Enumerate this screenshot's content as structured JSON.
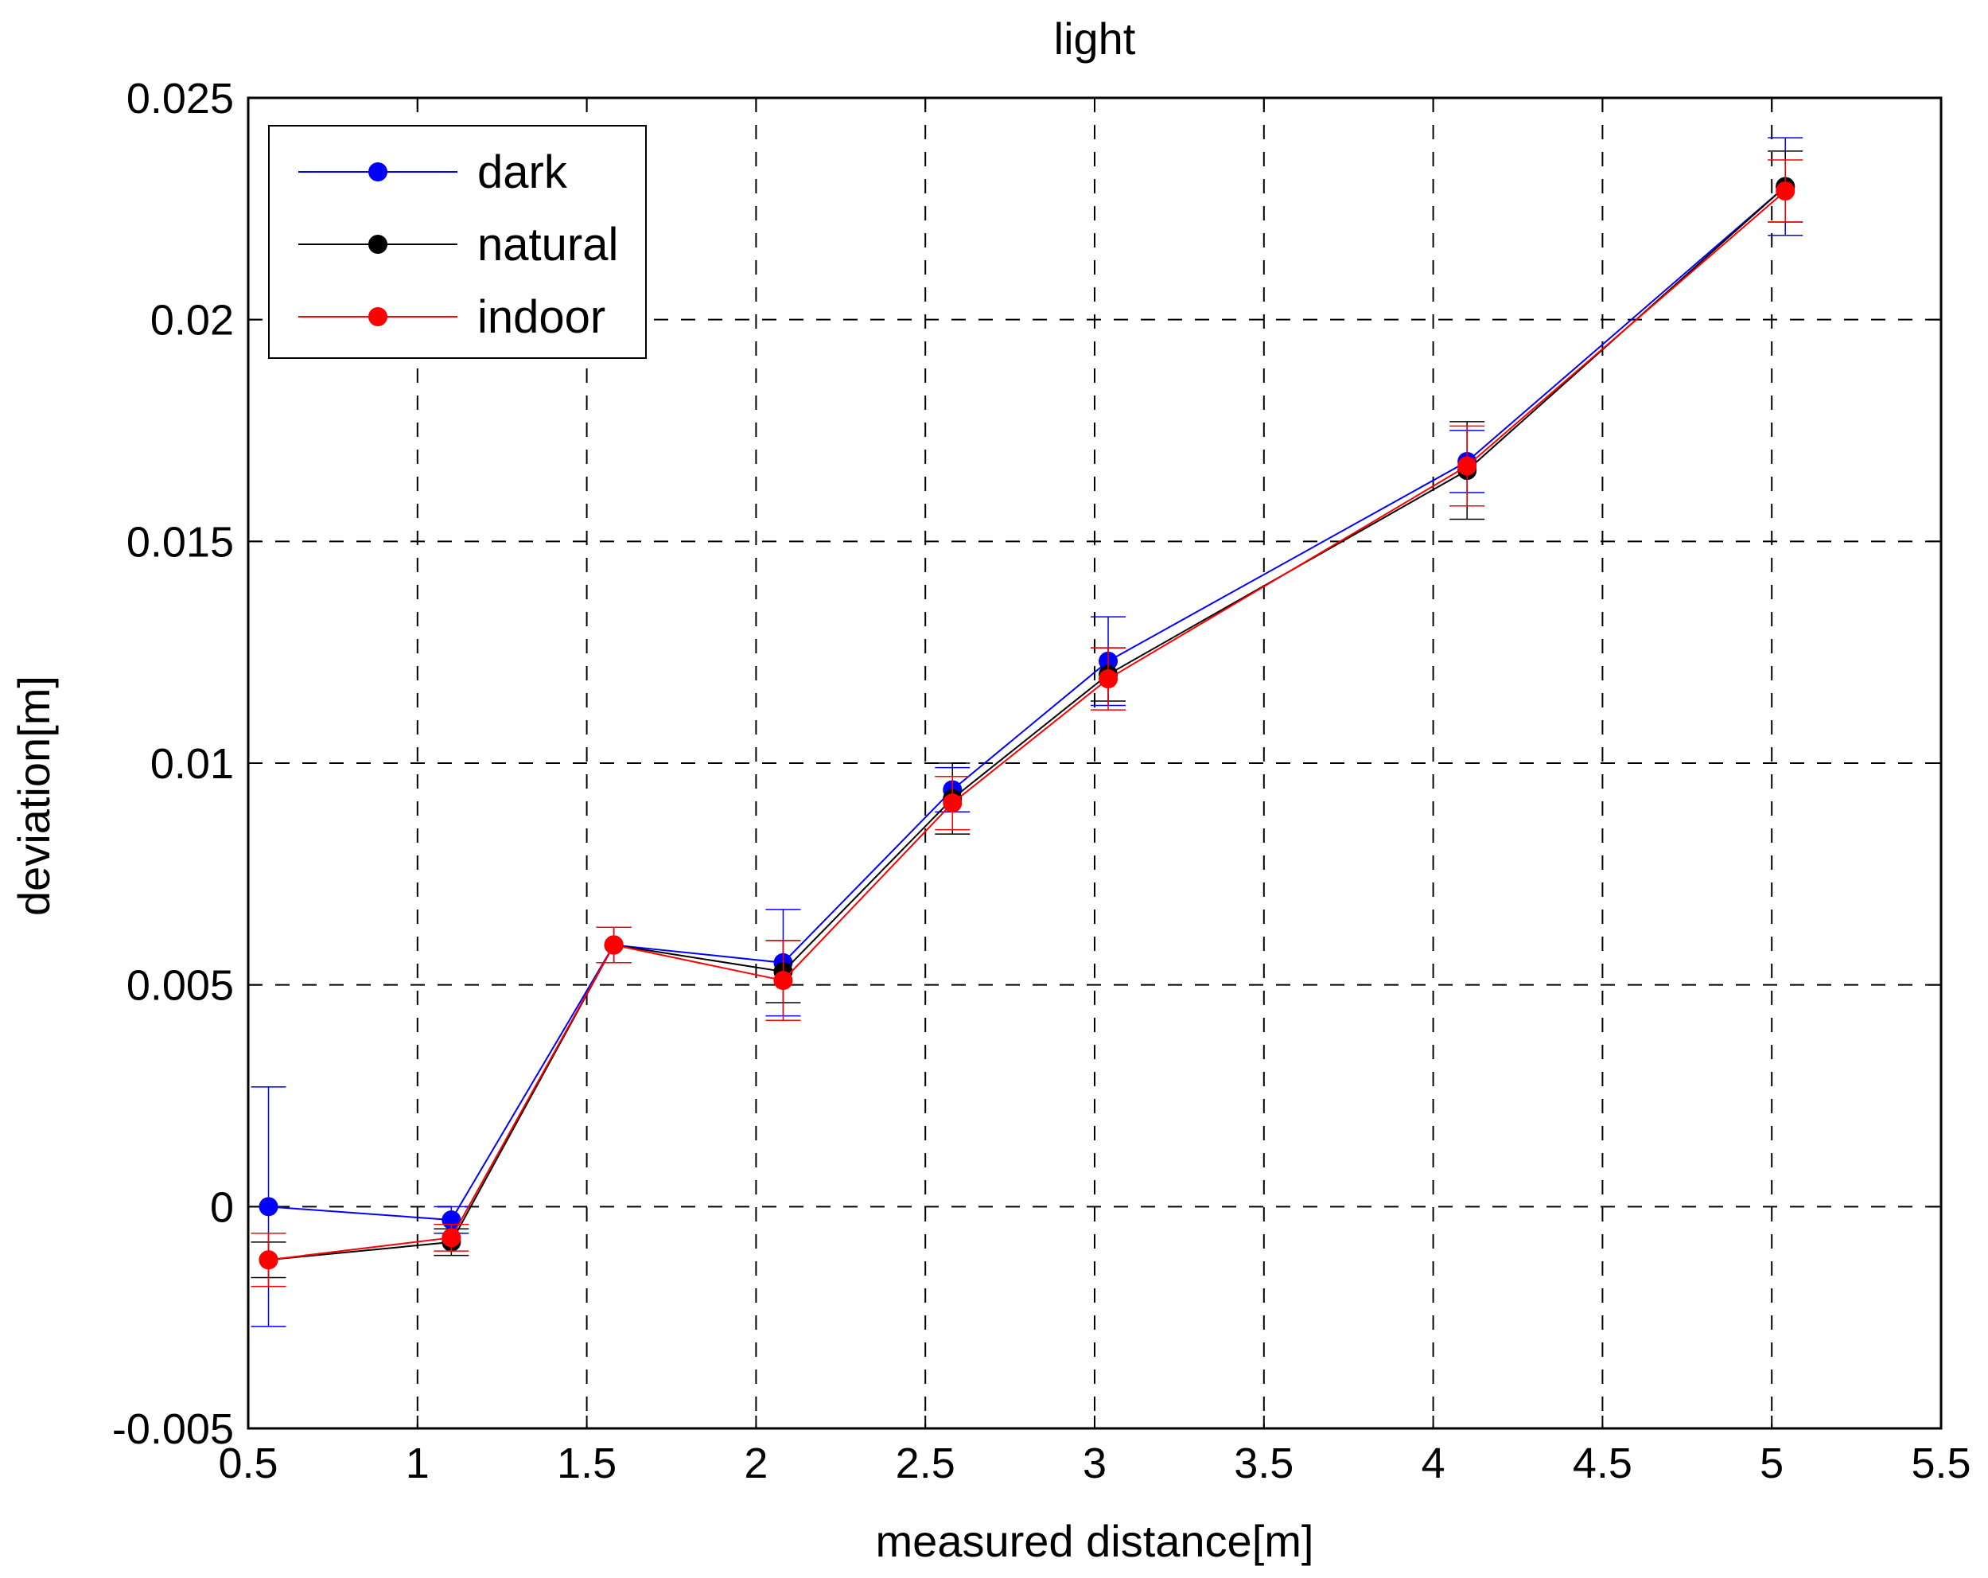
{
  "chart_data": {
    "type": "line",
    "title": "light",
    "xlabel": "measured distance[m]",
    "ylabel": "deviation[m]",
    "xlim": [
      0.5,
      5.5
    ],
    "ylim": [
      -0.005,
      0.025
    ],
    "xticks": [
      0.5,
      1,
      1.5,
      2,
      2.5,
      3,
      3.5,
      4,
      4.5,
      5,
      5.5
    ],
    "xtick_labels": [
      "0.5",
      "1",
      "1.5",
      "2",
      "2.5",
      "3",
      "3.5",
      "4",
      "4.5",
      "5",
      "5.5"
    ],
    "yticks": [
      -0.005,
      0,
      0.005,
      0.01,
      0.015,
      0.02,
      0.025
    ],
    "ytick_labels": [
      "-0.005",
      "0",
      "0.005",
      "0.01",
      "0.015",
      "0.02",
      "0.025"
    ],
    "grid": true,
    "legend_position": "top-left",
    "error_bars": true,
    "series": [
      {
        "name": "dark",
        "color": "#0000ff",
        "x": [
          0.56,
          1.1,
          1.58,
          2.08,
          2.58,
          3.04,
          4.1,
          5.04
        ],
        "y": [
          0.0,
          -0.0003,
          0.0059,
          0.0055,
          0.0094,
          0.0123,
          0.0168,
          0.023
        ],
        "err": [
          0.0027,
          0.0003,
          0.0004,
          0.0012,
          0.0005,
          0.001,
          0.0007,
          0.0011
        ]
      },
      {
        "name": "natural",
        "color": "#000000",
        "x": [
          0.56,
          1.1,
          1.58,
          2.08,
          2.58,
          3.04,
          4.1,
          5.04
        ],
        "y": [
          -0.0012,
          -0.0008,
          0.0059,
          0.0053,
          0.0092,
          0.012,
          0.0166,
          0.023
        ],
        "err": [
          0.0004,
          0.0003,
          0.0004,
          0.0007,
          0.0008,
          0.0006,
          0.0011,
          0.0008
        ]
      },
      {
        "name": "indoor",
        "color": "#ff0000",
        "x": [
          0.56,
          1.1,
          1.58,
          2.08,
          2.58,
          3.04,
          4.1,
          5.04
        ],
        "y": [
          -0.0012,
          -0.0007,
          0.0059,
          0.0051,
          0.0091,
          0.0119,
          0.0167,
          0.0229
        ],
        "err": [
          0.0006,
          0.0003,
          0.0004,
          0.0009,
          0.0006,
          0.0007,
          0.0009,
          0.0007
        ]
      }
    ]
  }
}
